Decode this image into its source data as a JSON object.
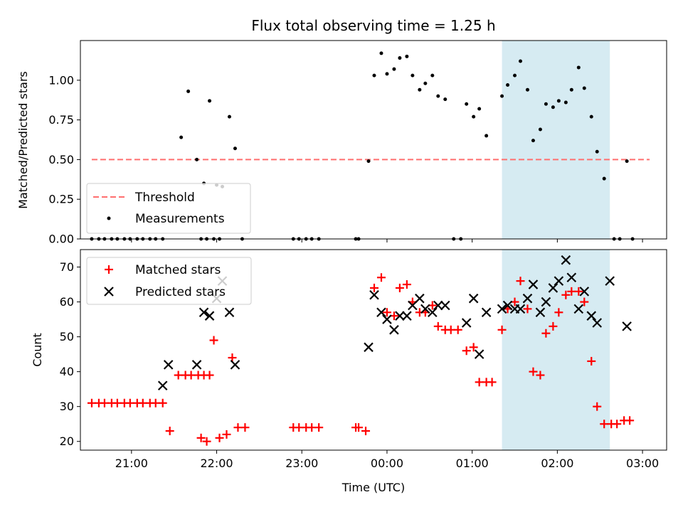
{
  "chart_data": [
    {
      "type": "scatter",
      "title": "Flux total observing time = 1.25 h",
      "xlabel": "",
      "ylabel": "Matched/Predicted stars",
      "xlim": [
        "20:24",
        "03:17"
      ],
      "ylim": [
        0,
        1.25
      ],
      "yticks": [
        0.0,
        0.25,
        0.5,
        0.75,
        1.0
      ],
      "ytick_labels": [
        "0.00",
        "0.25",
        "0.50",
        "0.75",
        "1.00"
      ],
      "highlight_span": {
        "x": [
          "01:21",
          "02:37"
        ],
        "color": "#add8e6"
      },
      "legend": {
        "placement": "lower-left",
        "entries": [
          "Threshold",
          "Measurements"
        ]
      },
      "series": [
        {
          "name": "Threshold",
          "style": "dashed-line",
          "color": "#ff6f6f",
          "points": [
            [
              "20:32",
              0.5
            ],
            [
              "03:05",
              0.5
            ]
          ]
        },
        {
          "name": "Measurements",
          "style": "dot",
          "color": "#000000",
          "points": [
            [
              "20:32",
              0
            ],
            [
              "20:37",
              0
            ],
            [
              "20:41",
              0
            ],
            [
              "20:46",
              0
            ],
            [
              "20:50",
              0
            ],
            [
              "20:55",
              0
            ],
            [
              "20:59",
              0
            ],
            [
              "21:04",
              0
            ],
            [
              "21:08",
              0
            ],
            [
              "21:13",
              0
            ],
            [
              "21:17",
              0
            ],
            [
              "21:22",
              0
            ],
            [
              "21:35",
              0.64
            ],
            [
              "21:40",
              0.93
            ],
            [
              "21:49",
              0
            ],
            [
              "21:53",
              0
            ],
            [
              "21:58",
              0
            ],
            [
              "22:02",
              0
            ],
            [
              "21:46",
              0.5
            ],
            [
              "21:51",
              0.35
            ],
            [
              "21:55",
              0.87
            ],
            [
              "22:00",
              0.34
            ],
            [
              "22:04",
              0.33
            ],
            [
              "22:09",
              0.77
            ],
            [
              "22:13",
              0.57
            ],
            [
              "22:18",
              0
            ],
            [
              "22:54",
              0
            ],
            [
              "22:58",
              0
            ],
            [
              "23:03",
              0
            ],
            [
              "23:07",
              0
            ],
            [
              "23:12",
              0
            ],
            [
              "23:38",
              0
            ],
            [
              "23:40",
              0
            ],
            [
              "23:47",
              0.49
            ],
            [
              "23:51",
              1.03
            ],
            [
              "23:56",
              1.17
            ],
            [
              "00:00",
              1.04
            ],
            [
              "00:05",
              1.07
            ],
            [
              "00:09",
              1.14
            ],
            [
              "00:14",
              1.15
            ],
            [
              "00:18",
              1.03
            ],
            [
              "00:23",
              0.94
            ],
            [
              "00:27",
              0.98
            ],
            [
              "00:32",
              1.03
            ],
            [
              "00:36",
              0.9
            ],
            [
              "00:41",
              0.88
            ],
            [
              "00:47",
              0
            ],
            [
              "00:52",
              0
            ],
            [
              "00:56",
              0.85
            ],
            [
              "01:01",
              0.77
            ],
            [
              "01:05",
              0.82
            ],
            [
              "01:10",
              0.65
            ],
            [
              "01:21",
              0.9
            ],
            [
              "01:25",
              0.97
            ],
            [
              "01:30",
              1.03
            ],
            [
              "01:34",
              1.12
            ],
            [
              "01:39",
              0.94
            ],
            [
              "01:43",
              0.62
            ],
            [
              "01:48",
              0.69
            ],
            [
              "01:52",
              0.85
            ],
            [
              "01:57",
              0.83
            ],
            [
              "02:01",
              0.87
            ],
            [
              "02:06",
              0.86
            ],
            [
              "02:10",
              0.94
            ],
            [
              "02:15",
              1.08
            ],
            [
              "02:19",
              0.95
            ],
            [
              "02:24",
              0.77
            ],
            [
              "02:28",
              0.55
            ],
            [
              "02:33",
              0.38
            ],
            [
              "02:40",
              0
            ],
            [
              "02:44",
              0
            ],
            [
              "02:49",
              0.49
            ],
            [
              "02:53",
              0
            ]
          ]
        }
      ]
    },
    {
      "type": "scatter",
      "title": "",
      "xlabel": "Time (UTC)",
      "ylabel": "Count",
      "xlim": [
        "20:24",
        "03:17"
      ],
      "ylim": [
        17.5,
        75
      ],
      "xticks": [
        "21:00",
        "22:00",
        "23:00",
        "00:00",
        "01:00",
        "02:00",
        "03:00"
      ],
      "yticks": [
        20,
        30,
        40,
        50,
        60,
        70
      ],
      "highlight_span": {
        "x": [
          "01:21",
          "02:37"
        ],
        "color": "#add8e6"
      },
      "legend": {
        "placement": "top-left",
        "entries": [
          "Matched stars",
          "Predicted stars"
        ]
      },
      "series": [
        {
          "name": "Matched stars",
          "marker": "plus",
          "color": "#ff0000",
          "points": [
            [
              "20:32",
              31
            ],
            [
              "20:37",
              31
            ],
            [
              "20:41",
              31
            ],
            [
              "20:46",
              31
            ],
            [
              "20:50",
              31
            ],
            [
              "20:55",
              31
            ],
            [
              "20:59",
              31
            ],
            [
              "21:04",
              31
            ],
            [
              "21:08",
              31
            ],
            [
              "21:13",
              31
            ],
            [
              "21:17",
              31
            ],
            [
              "21:22",
              31
            ],
            [
              "21:27",
              23
            ],
            [
              "21:33",
              39
            ],
            [
              "21:38",
              39
            ],
            [
              "21:42",
              39
            ],
            [
              "21:47",
              39
            ],
            [
              "21:51",
              39
            ],
            [
              "21:55",
              39
            ],
            [
              "21:49",
              21
            ],
            [
              "21:53",
              20
            ],
            [
              "21:58",
              49
            ],
            [
              "22:02",
              21
            ],
            [
              "22:07",
              22
            ],
            [
              "22:11",
              44
            ],
            [
              "22:15",
              24
            ],
            [
              "22:20",
              24
            ],
            [
              "22:54",
              24
            ],
            [
              "22:58",
              24
            ],
            [
              "23:03",
              24
            ],
            [
              "23:07",
              24
            ],
            [
              "23:12",
              24
            ],
            [
              "23:38",
              24
            ],
            [
              "23:40",
              24
            ],
            [
              "23:45",
              23
            ],
            [
              "23:51",
              64
            ],
            [
              "23:56",
              67
            ],
            [
              "00:00",
              57
            ],
            [
              "00:05",
              56
            ],
            [
              "00:09",
              64
            ],
            [
              "00:14",
              65
            ],
            [
              "00:18",
              60
            ],
            [
              "00:23",
              57
            ],
            [
              "00:27",
              57
            ],
            [
              "00:32",
              59
            ],
            [
              "00:36",
              53
            ],
            [
              "00:41",
              52
            ],
            [
              "00:45",
              52
            ],
            [
              "00:50",
              52
            ],
            [
              "00:56",
              46
            ],
            [
              "01:01",
              47
            ],
            [
              "01:05",
              37
            ],
            [
              "01:10",
              37
            ],
            [
              "01:14",
              37
            ],
            [
              "01:21",
              52
            ],
            [
              "01:25",
              58
            ],
            [
              "01:30",
              60
            ],
            [
              "01:34",
              66
            ],
            [
              "01:39",
              58
            ],
            [
              "01:43",
              40
            ],
            [
              "01:48",
              39
            ],
            [
              "01:52",
              51
            ],
            [
              "01:57",
              53
            ],
            [
              "02:01",
              57
            ],
            [
              "02:06",
              62
            ],
            [
              "02:10",
              63
            ],
            [
              "02:15",
              63
            ],
            [
              "02:19",
              60
            ],
            [
              "02:24",
              43
            ],
            [
              "02:28",
              30
            ],
            [
              "02:33",
              25
            ],
            [
              "02:38",
              25
            ],
            [
              "02:42",
              25
            ],
            [
              "02:47",
              26
            ],
            [
              "02:51",
              26
            ]
          ]
        },
        {
          "name": "Predicted stars",
          "marker": "x",
          "color": "#000000",
          "points": [
            [
              "21:22",
              36
            ],
            [
              "21:26",
              42
            ],
            [
              "21:46",
              42
            ],
            [
              "21:51",
              57
            ],
            [
              "21:55",
              56
            ],
            [
              "22:00",
              61
            ],
            [
              "22:04",
              66
            ],
            [
              "22:09",
              57
            ],
            [
              "22:13",
              42
            ],
            [
              "23:47",
              47
            ],
            [
              "23:51",
              62
            ],
            [
              "23:56",
              57
            ],
            [
              "00:00",
              55
            ],
            [
              "00:05",
              52
            ],
            [
              "00:09",
              56
            ],
            [
              "00:14",
              56
            ],
            [
              "00:18",
              59
            ],
            [
              "00:23",
              61
            ],
            [
              "00:27",
              58
            ],
            [
              "00:32",
              57
            ],
            [
              "00:36",
              59
            ],
            [
              "00:41",
              59
            ],
            [
              "00:56",
              54
            ],
            [
              "01:01",
              61
            ],
            [
              "01:05",
              45
            ],
            [
              "01:10",
              57
            ],
            [
              "01:21",
              58
            ],
            [
              "01:25",
              59
            ],
            [
              "01:30",
              58
            ],
            [
              "01:34",
              58
            ],
            [
              "01:39",
              61
            ],
            [
              "01:43",
              65
            ],
            [
              "01:48",
              57
            ],
            [
              "01:52",
              60
            ],
            [
              "01:57",
              64
            ],
            [
              "02:01",
              66
            ],
            [
              "02:06",
              72
            ],
            [
              "02:10",
              67
            ],
            [
              "02:15",
              58
            ],
            [
              "02:19",
              63
            ],
            [
              "02:24",
              56
            ],
            [
              "02:28",
              54
            ],
            [
              "02:37",
              66
            ],
            [
              "02:49",
              53
            ]
          ]
        }
      ]
    }
  ]
}
